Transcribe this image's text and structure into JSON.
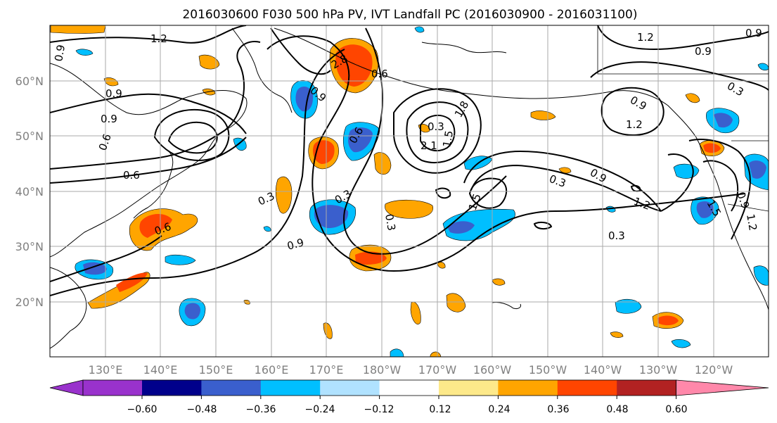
{
  "title": "2016030600 F030 500 hPa PV, IVT Landfall PC (2016030900 - 2016031100)",
  "map": {
    "lon_range": [
      120,
      -110
    ],
    "lat_range": [
      10,
      70
    ],
    "lat_ticks": [
      "20°N",
      "30°N",
      "40°N",
      "50°N",
      "60°N"
    ],
    "lon_ticks": [
      "130°E",
      "140°E",
      "150°E",
      "160°E",
      "170°E",
      "180°W",
      "170°W",
      "160°W",
      "150°W",
      "140°W",
      "130°W",
      "120°W"
    ],
    "grid": true
  },
  "colorbar": {
    "ticks": [
      "−0.60",
      "−0.48",
      "−0.36",
      "−0.24",
      "−0.12",
      "0.12",
      "0.24",
      "0.36",
      "0.48",
      "0.60"
    ],
    "colors": [
      "#9932cc",
      "#00008b",
      "#3a5fcd",
      "#00bfff",
      "#b0e2ff",
      "#ffffff",
      "#fde98a",
      "#ffa500",
      "#ff4500",
      "#b22222",
      "#ff88aa"
    ],
    "extend": "both"
  },
  "contour_labels": [
    "1.2",
    "0.9",
    "0.9",
    "0.9",
    "0.9",
    "1.2",
    "0.6",
    "0.3",
    "0.6",
    "0.3",
    "0.3",
    "0.3",
    "1.2",
    "0.6",
    "2.1",
    "1.5",
    "1.8",
    "1.5",
    "0.3",
    "0.3",
    "0.9",
    "1.2",
    "1.5",
    "0.9",
    "1.2",
    "0.9",
    "0.6",
    "0.9",
    "0.9",
    "0.3",
    "0.9",
    "2.8",
    "0.6"
  ]
}
